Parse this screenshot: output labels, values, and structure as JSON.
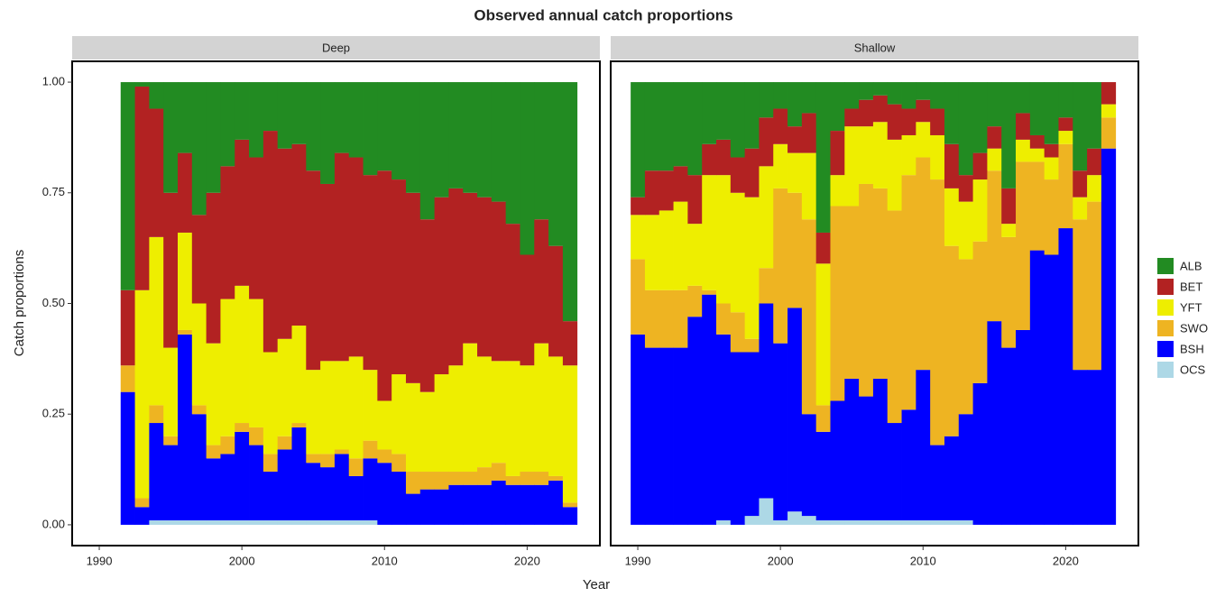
{
  "chart_data": {
    "type": "bar",
    "stacked": true,
    "title": "Observed annual catch proportions",
    "x_label": "Year",
    "y_label": "Catch proportions",
    "xlim": [
      1988.1,
      2025.1
    ],
    "xticks": [
      1990,
      2000,
      2010,
      2020
    ],
    "ylim": [
      -0.047,
      1.047
    ],
    "yticks": [
      {
        "value": 0,
        "label": "0.00"
      },
      {
        "value": 0.25,
        "label": "0.25"
      },
      {
        "value": 0.5,
        "label": "0.50"
      },
      {
        "value": 0.75,
        "label": "0.75"
      },
      {
        "value": 1,
        "label": "1.00"
      }
    ],
    "legend": "right",
    "panels": [
      {
        "title": "Deep",
        "x": [
          1992,
          1993,
          1994,
          1995,
          1996,
          1997,
          1998,
          1999,
          2000,
          2001,
          2002,
          2003,
          2004,
          2005,
          2006,
          2007,
          2008,
          2009,
          2010,
          2011,
          2012,
          2013,
          2014,
          2015,
          2016,
          2017,
          2018,
          2019,
          2020,
          2021,
          2022,
          2023
        ],
        "series": [
          {
            "name": "ALB",
            "color": "#228b22",
            "values": [
              0.47,
              0.01,
              0.06,
              0.25,
              0.16,
              0.3,
              0.25,
              0.19,
              0.13,
              0.17,
              0.11,
              0.15,
              0.14,
              0.2,
              0.23,
              0.16,
              0.17,
              0.21,
              0.2,
              0.22,
              0.25,
              0.31,
              0.26,
              0.24,
              0.25,
              0.26,
              0.27,
              0.32,
              0.39,
              0.31,
              0.37,
              0.54
            ]
          },
          {
            "name": "BET",
            "color": "#b22222",
            "values": [
              0.17,
              0.46,
              0.29,
              0.35,
              0.18,
              0.2,
              0.34,
              0.3,
              0.33,
              0.32,
              0.5,
              0.43,
              0.41,
              0.45,
              0.4,
              0.47,
              0.45,
              0.44,
              0.52,
              0.44,
              0.43,
              0.39,
              0.4,
              0.4,
              0.34,
              0.36,
              0.36,
              0.31,
              0.25,
              0.28,
              0.25,
              0.1
            ]
          },
          {
            "name": "YFT",
            "color": "#eeee00",
            "values": [
              0,
              0.47,
              0.38,
              0.2,
              0.22,
              0.23,
              0.23,
              0.31,
              0.31,
              0.29,
              0.23,
              0.22,
              0.22,
              0.19,
              0.21,
              0.2,
              0.23,
              0.16,
              0.11,
              0.18,
              0.2,
              0.18,
              0.22,
              0.24,
              0.29,
              0.25,
              0.23,
              0.26,
              0.24,
              0.29,
              0.27,
              0.31
            ]
          },
          {
            "name": "SWO",
            "color": "#eeb422",
            "values": [
              0.06,
              0.02,
              0.04,
              0.02,
              0.01,
              0.02,
              0.03,
              0.04,
              0.02,
              0.04,
              0.04,
              0.03,
              0.01,
              0.02,
              0.03,
              0.01,
              0.04,
              0.04,
              0.03,
              0.04,
              0.05,
              0.04,
              0.04,
              0.03,
              0.03,
              0.04,
              0.04,
              0.02,
              0.03,
              0.03,
              0.01,
              0.01
            ]
          },
          {
            "name": "BSH",
            "color": "#0000ff",
            "values": [
              0.3,
              0.04,
              0.22,
              0.17,
              0.42,
              0.24,
              0.14,
              0.15,
              0.2,
              0.17,
              0.11,
              0.16,
              0.21,
              0.13,
              0.12,
              0.15,
              0.1,
              0.14,
              0.14,
              0.12,
              0.07,
              0.08,
              0.08,
              0.09,
              0.09,
              0.09,
              0.1,
              0.09,
              0.09,
              0.09,
              0.1,
              0.04
            ]
          },
          {
            "name": "OCS",
            "color": "#add8e6",
            "values": [
              0,
              0,
              0.01,
              0.01,
              0.01,
              0.01,
              0.01,
              0.01,
              0.01,
              0.01,
              0.01,
              0.01,
              0.01,
              0.01,
              0.01,
              0.01,
              0.01,
              0.01,
              0,
              0,
              0,
              0,
              0,
              0,
              0,
              0,
              0,
              0,
              0,
              0,
              0,
              0
            ]
          }
        ]
      },
      {
        "title": "Shallow",
        "x": [
          1990,
          1991,
          1992,
          1993,
          1994,
          1995,
          1996,
          1997,
          1998,
          1999,
          2000,
          2001,
          2002,
          2003,
          2004,
          2005,
          2006,
          2007,
          2008,
          2009,
          2010,
          2011,
          2012,
          2013,
          2014,
          2015,
          2016,
          2017,
          2018,
          2019,
          2020,
          2021,
          2022,
          2023
        ],
        "series": [
          {
            "name": "ALB",
            "color": "#228b22",
            "values": [
              0.26,
              0.2,
              0.2,
              0.19,
              0.21,
              0.14,
              0.13,
              0.17,
              0.15,
              0.08,
              0.06,
              0.1,
              0.07,
              0.34,
              0.11,
              0.06,
              0.04,
              0.03,
              0.05,
              0.06,
              0.04,
              0.06,
              0.14,
              0.21,
              0.16,
              0.1,
              0.24,
              0.07,
              0.12,
              0.14,
              0.08,
              0.2,
              0.15,
              0
            ]
          },
          {
            "name": "BET",
            "color": "#b22222",
            "values": [
              0.04,
              0.1,
              0.09,
              0.08,
              0.11,
              0.07,
              0.08,
              0.08,
              0.11,
              0.11,
              0.08,
              0.06,
              0.09,
              0.07,
              0.1,
              0.04,
              0.06,
              0.06,
              0.08,
              0.06,
              0.05,
              0.06,
              0.1,
              0.06,
              0.06,
              0.05,
              0.08,
              0.06,
              0.03,
              0.03,
              0.03,
              0.06,
              0.06,
              0.05
            ]
          },
          {
            "name": "YFT",
            "color": "#eeee00",
            "values": [
              0.1,
              0.17,
              0.18,
              0.2,
              0.14,
              0.26,
              0.29,
              0.27,
              0.32,
              0.23,
              0.1,
              0.09,
              0.15,
              0.32,
              0.07,
              0.18,
              0.13,
              0.15,
              0.16,
              0.09,
              0.08,
              0.1,
              0.13,
              0.13,
              0.14,
              0.05,
              0.03,
              0.05,
              0.03,
              0.05,
              0.03,
              0.05,
              0.06,
              0.03
            ]
          },
          {
            "name": "SWO",
            "color": "#eeb422",
            "values": [
              0.17,
              0.13,
              0.13,
              0.13,
              0.07,
              0.01,
              0.07,
              0.09,
              0.03,
              0.08,
              0.35,
              0.26,
              0.44,
              0.06,
              0.44,
              0.39,
              0.48,
              0.43,
              0.48,
              0.53,
              0.48,
              0.6,
              0.43,
              0.35,
              0.32,
              0.34,
              0.25,
              0.38,
              0.2,
              0.17,
              0.19,
              0.34,
              0.38,
              0.07
            ]
          },
          {
            "name": "BSH",
            "color": "#0000ff",
            "values": [
              0.43,
              0.4,
              0.4,
              0.4,
              0.47,
              0.52,
              0.42,
              0.39,
              0.37,
              0.44,
              0.4,
              0.46,
              0.23,
              0.2,
              0.27,
              0.32,
              0.28,
              0.32,
              0.22,
              0.25,
              0.34,
              0.17,
              0.19,
              0.24,
              0.32,
              0.46,
              0.4,
              0.44,
              0.62,
              0.61,
              0.67,
              0.35,
              0.35,
              0.85
            ]
          },
          {
            "name": "OCS",
            "color": "#add8e6",
            "values": [
              0,
              0,
              0,
              0,
              0,
              0,
              0.01,
              0,
              0.02,
              0.06,
              0.01,
              0.03,
              0.02,
              0.01,
              0.01,
              0.01,
              0.01,
              0.01,
              0.01,
              0.01,
              0.01,
              0.01,
              0.01,
              0.01,
              0,
              0,
              0,
              0,
              0,
              0,
              0,
              0,
              0,
              0
            ]
          }
        ]
      }
    ]
  }
}
